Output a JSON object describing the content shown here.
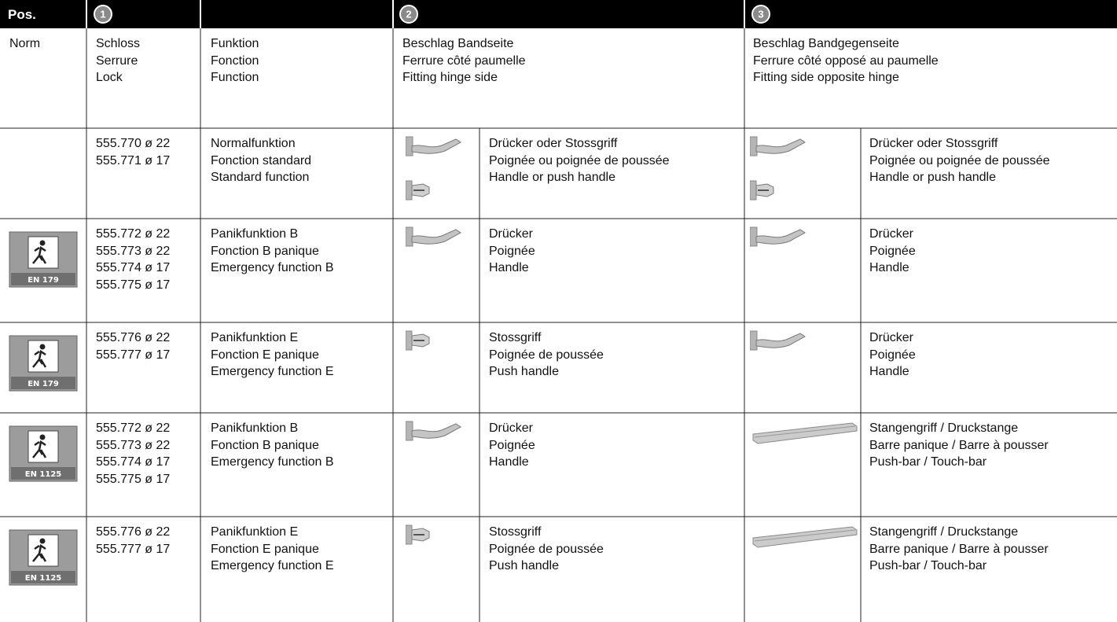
{
  "header": {
    "pos": "Pos.",
    "markers": [
      "1",
      "2",
      "3"
    ]
  },
  "columns": {
    "norm": "Norm",
    "lock": [
      "Schloss",
      "Serrure",
      "Lock"
    ],
    "function": [
      "Funktion",
      "Fonction",
      "Function"
    ],
    "hinge_side": [
      "Beschlag Bandseite",
      "Ferrure côté paumelle",
      "Fitting hinge side"
    ],
    "opposite_side": [
      "Beschlag Bandgegenseite",
      "Ferrure côté opposé au paumelle",
      "Fitting side opposite hinge"
    ]
  },
  "rows": [
    {
      "locks": [
        "555.770 ø 22",
        "555.771 ø 17"
      ],
      "functions": [
        "Normalfunktion",
        "Fonction standard",
        "Standard function"
      ],
      "hinge_side": [
        "Drücker oder Stossgriff",
        "Poignée ou poignée de poussée",
        "Handle or push handle"
      ],
      "opposite_side": [
        "Drücker oder Stossgriff",
        "Poignée ou poignée de poussée",
        "Handle or push handle"
      ]
    },
    {
      "norm": "EN 179",
      "locks": [
        "555.772 ø 22",
        "555.773 ø 22",
        "555.774 ø 17",
        "555.775 ø 17"
      ],
      "functions": [
        "Panikfunktion B",
        "Fonction B panique",
        "Emergency function B"
      ],
      "hinge_side": [
        "Drücker",
        "Poignée",
        "Handle"
      ],
      "opposite_side": [
        "Drücker",
        "Poignée",
        "Handle"
      ]
    },
    {
      "norm": "EN 179",
      "locks": [
        "555.776 ø 22",
        "555.777 ø 17"
      ],
      "functions": [
        "Panikfunktion E",
        "Fonction E panique",
        "Emergency function E"
      ],
      "hinge_side": [
        "Stossgriff",
        "Poignée de poussée",
        "Push handle"
      ],
      "opposite_side": [
        "Drücker",
        "Poignée",
        "Handle"
      ]
    },
    {
      "norm": "EN 1125",
      "locks": [
        "555.772 ø 22",
        "555.773 ø 22",
        "555.774 ø 17",
        "555.775 ø 17"
      ],
      "functions": [
        "Panikfunktion B",
        "Fonction B panique",
        "Emergency function B"
      ],
      "hinge_side": [
        "Drücker",
        "Poignée",
        "Handle"
      ],
      "opposite_side": [
        "Stangengriff / Druckstange",
        "Barre panique / Barre à pousser",
        "Push-bar / Touch-bar"
      ]
    },
    {
      "norm": "EN 1125",
      "locks": [
        "555.776 ø 22",
        "555.777 ø 17"
      ],
      "functions": [
        "Panikfunktion E",
        "Fonction E panique",
        "Emergency function E"
      ],
      "hinge_side": [
        "Stossgriff",
        "Poignée de poussée",
        "Push handle"
      ],
      "opposite_side": [
        "Stangengriff / Druckstange",
        "Barre panique / Barre à pousser",
        "Push-bar / Touch-bar"
      ]
    }
  ]
}
